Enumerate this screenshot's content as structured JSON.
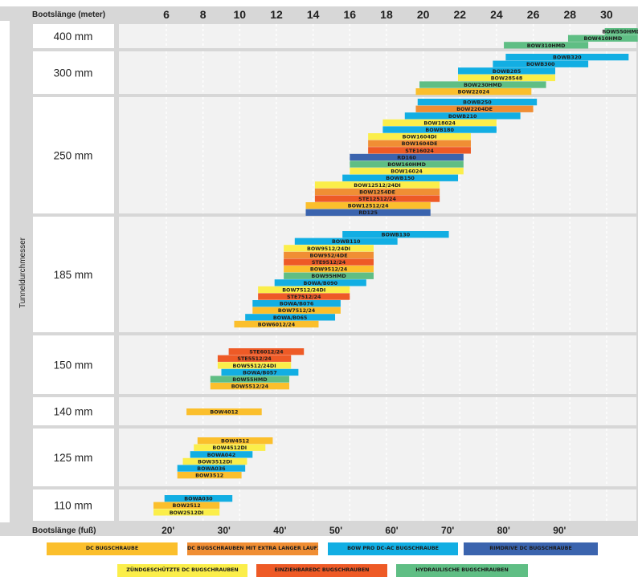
{
  "chart_data": {
    "type": "bar",
    "orientation": "horizontal-range",
    "x_top_label": "Bootslänge (meter)",
    "x_bottom_label": "Bootslänge (fuß)",
    "y_label": "Tunneldurchmesser",
    "meter_ticks": [
      "6",
      "8",
      "10",
      "12",
      "14",
      "16",
      "18",
      "20",
      "22",
      "24",
      "26",
      "28",
      "30"
    ],
    "feet_ticks": [
      "20'",
      "30'",
      "40'",
      "50'",
      "60'",
      "70'",
      "80'",
      "90'"
    ],
    "xlim_m": [
      4.4,
      31.7
    ],
    "grid": true,
    "legend_position": "bottom",
    "colors": {
      "dc": "#fbbf2c",
      "dc_long": "#f08e34",
      "bow_pro": "#12aee3",
      "rimdrive": "#3b64ae",
      "ignition": "#fbee4a",
      "retract": "#ee5a26",
      "hydraulic": "#5fbe84"
    },
    "legend": [
      {
        "label": "DC BUGSCHRAUBE",
        "color": "dc"
      },
      {
        "label": "DC BUGSCHRAUBEN MIT EXTRA LANGER LAUFZEIT",
        "color": "dc_long"
      },
      {
        "label": "BOW PRO DC-AC BUGSCHRAUBE",
        "color": "bow_pro"
      },
      {
        "label": "RIMDRIVE DC BUGSCHRAUBE",
        "color": "rimdrive"
      },
      {
        "label": "ZÜNDGESCHÜTZTE DC BUGSCHRAUBEN",
        "color": "ignition"
      },
      {
        "label": "EINZIEHBAREDC BUGSCHRAUBEN",
        "color": "retract"
      },
      {
        "label": "HYDRAULISCHE BUGSCHRAUBEN",
        "color": "hydraulic"
      }
    ],
    "groups": [
      {
        "label": "400 mm",
        "bars": [
          {
            "name": "BOW550HMD",
            "color": "hydraulic",
            "from": 29.9,
            "to": 31.7
          },
          {
            "name": "BOW410HMD",
            "color": "hydraulic",
            "from": 27.9,
            "to": 31.7
          },
          {
            "name": "BOW310HMD",
            "color": "hydraulic",
            "from": 24.4,
            "to": 29.0
          }
        ]
      },
      {
        "label": "300 mm",
        "bars": [
          {
            "name": "BOWB320",
            "color": "bow_pro",
            "from": 24.5,
            "to": 31.2
          },
          {
            "name": "BOWB300",
            "color": "bow_pro",
            "from": 23.8,
            "to": 29.0
          },
          {
            "name": "BOWB285",
            "color": "bow_pro",
            "from": 21.9,
            "to": 27.2
          },
          {
            "name": "BOW28548",
            "color": "ignition",
            "from": 21.9,
            "to": 27.2
          },
          {
            "name": "BOW230HMD",
            "color": "hydraulic",
            "from": 19.8,
            "to": 26.7
          },
          {
            "name": "BOW22024",
            "color": "dc",
            "from": 19.6,
            "to": 25.9
          }
        ]
      },
      {
        "label": "250 mm",
        "bars": [
          {
            "name": "BOWB250",
            "color": "bow_pro",
            "from": 19.7,
            "to": 26.2
          },
          {
            "name": "BOW2204DE",
            "color": "dc_long",
            "from": 19.6,
            "to": 26.0
          },
          {
            "name": "BOWB210",
            "color": "bow_pro",
            "from": 19.0,
            "to": 25.3
          },
          {
            "name": "BOW18024",
            "color": "ignition",
            "from": 17.8,
            "to": 24.0
          },
          {
            "name": "BOWB180",
            "color": "bow_pro",
            "from": 17.8,
            "to": 24.0
          },
          {
            "name": "BOW1604DI",
            "color": "ignition",
            "from": 17.0,
            "to": 22.6
          },
          {
            "name": "BOW1604DE",
            "color": "dc_long",
            "from": 17.0,
            "to": 22.6
          },
          {
            "name": "STE16024",
            "color": "retract",
            "from": 17.0,
            "to": 22.6
          },
          {
            "name": "RD160",
            "color": "rimdrive",
            "from": 16.0,
            "to": 22.2
          },
          {
            "name": "BOW160HMD",
            "color": "hydraulic",
            "from": 16.0,
            "to": 22.2
          },
          {
            "name": "BOW16024",
            "color": "ignition",
            "from": 16.0,
            "to": 22.2
          },
          {
            "name": "BOWB150",
            "color": "bow_pro",
            "from": 15.6,
            "to": 21.9
          },
          {
            "name": "BOW12512/24DI",
            "color": "ignition",
            "from": 14.1,
            "to": 20.9
          },
          {
            "name": "BOW1254DE",
            "color": "dc_long",
            "from": 14.1,
            "to": 20.9
          },
          {
            "name": "STE12512/24",
            "color": "retract",
            "from": 14.1,
            "to": 20.9
          },
          {
            "name": "BOW12512/24",
            "color": "dc",
            "from": 13.6,
            "to": 20.4
          },
          {
            "name": "RD125",
            "color": "rimdrive",
            "from": 13.6,
            "to": 20.4
          }
        ]
      },
      {
        "label": "185 mm",
        "bars": [
          {
            "name": "BOWB130",
            "color": "bow_pro",
            "from": 15.6,
            "to": 21.4
          },
          {
            "name": "BOWB110",
            "color": "bow_pro",
            "from": 13.0,
            "to": 18.6
          },
          {
            "name": "BOW9512/24DI",
            "color": "ignition",
            "from": 12.4,
            "to": 17.3
          },
          {
            "name": "BOW952/4DE",
            "color": "dc_long",
            "from": 12.4,
            "to": 17.3
          },
          {
            "name": "STE9512/24",
            "color": "retract",
            "from": 12.4,
            "to": 17.3
          },
          {
            "name": "BOW9512/24",
            "color": "dc",
            "from": 12.4,
            "to": 17.3
          },
          {
            "name": "BOW95HMD",
            "color": "hydraulic",
            "from": 12.4,
            "to": 17.3
          },
          {
            "name": "BOWA/B090",
            "color": "bow_pro",
            "from": 11.9,
            "to": 16.9
          },
          {
            "name": "BOW7512/24DI",
            "color": "ignition",
            "from": 11.0,
            "to": 16.0
          },
          {
            "name": "STE7512/24",
            "color": "retract",
            "from": 11.0,
            "to": 16.0
          },
          {
            "name": "BOWA/B076",
            "color": "bow_pro",
            "from": 10.7,
            "to": 15.5
          },
          {
            "name": "BOW7512/24",
            "color": "dc",
            "from": 10.7,
            "to": 15.5
          },
          {
            "name": "BOWA/B065",
            "color": "bow_pro",
            "from": 10.3,
            "to": 15.2
          },
          {
            "name": "BOW6012/24",
            "color": "dc",
            "from": 9.7,
            "to": 14.3
          }
        ]
      },
      {
        "label": "150 mm",
        "bars": [
          {
            "name": "STE6012/24",
            "color": "retract",
            "from": 9.4,
            "to": 13.5
          },
          {
            "name": "STE5512/24",
            "color": "retract",
            "from": 8.8,
            "to": 12.8
          },
          {
            "name": "BOW5512/24DI",
            "color": "ignition",
            "from": 8.8,
            "to": 12.8
          },
          {
            "name": "BOWA/B057",
            "color": "bow_pro",
            "from": 9.0,
            "to": 13.2
          },
          {
            "name": "BOW55HMD",
            "color": "hydraulic",
            "from": 8.4,
            "to": 12.7
          },
          {
            "name": "BOW5512/24",
            "color": "dc",
            "from": 8.4,
            "to": 12.7
          }
        ]
      },
      {
        "label": "140 mm",
        "bars": [
          {
            "name": "BOW4012",
            "color": "dc",
            "from": 7.1,
            "to": 11.2
          }
        ]
      },
      {
        "label": "125 mm",
        "bars": [
          {
            "name": "BOW4512",
            "color": "dc",
            "from": 7.7,
            "to": 11.8
          },
          {
            "name": "BOW4512DI",
            "color": "ignition",
            "from": 7.5,
            "to": 11.4
          },
          {
            "name": "BOWA042",
            "color": "bow_pro",
            "from": 7.3,
            "to": 10.7
          },
          {
            "name": "BOW3512DI",
            "color": "ignition",
            "from": 6.9,
            "to": 10.4
          },
          {
            "name": "BOWA036",
            "color": "bow_pro",
            "from": 6.6,
            "to": 10.3
          },
          {
            "name": "BOW3512",
            "color": "dc",
            "from": 6.6,
            "to": 10.1
          }
        ]
      },
      {
        "label": "110 mm",
        "bars": [
          {
            "name": "BOWA030",
            "color": "bow_pro",
            "from": 5.9,
            "to": 9.6
          },
          {
            "name": "BOW2512",
            "color": "dc",
            "from": 5.3,
            "to": 8.9
          },
          {
            "name": "BOW2512DI",
            "color": "ignition",
            "from": 5.3,
            "to": 8.9
          }
        ]
      }
    ]
  }
}
